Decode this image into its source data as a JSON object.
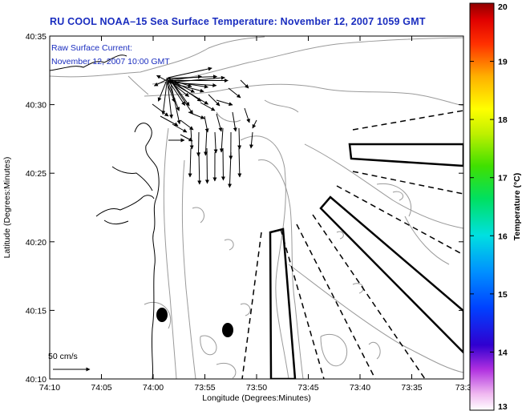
{
  "title": "RU COOL  NOAA–15  Sea Surface Temperature:  November 12, 2007 1059 GMT",
  "annotation_line1": "Raw Surface Current:",
  "annotation_line2": "November 12, 2007 10:00 GMT",
  "scale_label": "50 cm/s",
  "x_axis_label": "Longitude (Degrees:Minutes)",
  "y_axis_label": "Latitude (Degrees:Minutes)",
  "colorbar_label": "Temperature (°C)",
  "x_ticks": [
    "74:10",
    "74:05",
    "74:00",
    "73:55",
    "73:50",
    "73:45",
    "73:40",
    "73:35",
    "73:3"
  ],
  "y_ticks": [
    "40:35",
    "40:30",
    "40:25",
    "40:20",
    "40:15",
    "40:10"
  ],
  "colorbar_ticks": [
    "20",
    "19",
    "18",
    "17",
    "16",
    "15",
    "14",
    "13"
  ],
  "colors": {
    "title": "#1a2dbf",
    "contour": "#9a9a9a",
    "coast": "#000000"
  }
}
